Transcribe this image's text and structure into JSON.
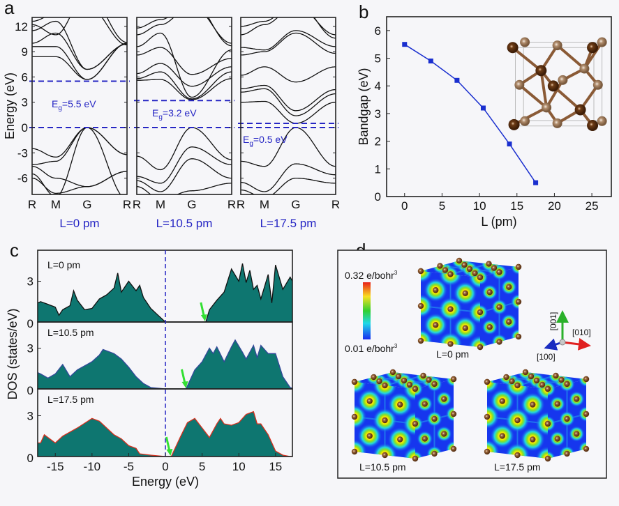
{
  "panel_labels": {
    "a": "a",
    "b": "b",
    "c": "c",
    "d": "d"
  },
  "colors": {
    "band_line": "#111111",
    "dashed_line": "#2626c4",
    "label_blue": "#2626c4",
    "bandgap_line": "#1a2fcf",
    "dos_fill": "#0e7670",
    "dos_line_0": "#111111",
    "dos_line_10_5": "#34489a",
    "dos_line_17_5": "#d8301e",
    "arrow_green": "#33e033"
  },
  "chart_data": [
    {
      "type": "line",
      "label": "a",
      "ylabel": "Energy (eV)",
      "ylim": [
        -7.9,
        13
      ],
      "yticks": [
        "12",
        "9",
        "6",
        "3",
        "0",
        "-3",
        "-6"
      ],
      "ytick_values": [
        12,
        9,
        6,
        3,
        0,
        -3,
        -6
      ],
      "k_labels": [
        "R",
        "M",
        "G",
        "R"
      ],
      "subplots": [
        {
          "title": "L=0 pm",
          "gap": {
            "main": "E",
            "sub": "g",
            "rest": "=5.5 eV"
          },
          "vbm": 0,
          "cbm": 5.5,
          "bands": [
            [
              -2.5,
              -3.5,
              0,
              -3.2
            ],
            [
              -4.4,
              -4.0,
              0,
              -3.2
            ],
            [
              -5.5,
              -8.2,
              0,
              -8.5
            ],
            [
              -6.0,
              -7.8,
              -7.0,
              -5.2
            ],
            [
              -4.6,
              -6.0,
              -7.0,
              -5.2
            ],
            [
              8.4,
              8.4,
              5.7,
              10.0
            ],
            [
              9.6,
              9.6,
              5.7,
              10.0
            ],
            [
              10.0,
              11.2,
              6.9,
              9.9
            ],
            [
              11.5,
              12.6,
              6.9,
              9.9
            ],
            [
              12.6,
              13.5,
              14.5,
              9.8
            ],
            [
              12.2,
              11.0,
              16.0,
              10.1
            ]
          ]
        },
        {
          "title": "L=10.5 pm",
          "gap": {
            "main": "E",
            "sub": "g",
            "rest": "=3.2 eV"
          },
          "vbm": 0,
          "cbm": 3.2,
          "bands": [
            [
              -3.4,
              -5.0,
              0,
              -3.8
            ],
            [
              -5.8,
              -6.6,
              -2.3,
              -4.4
            ],
            [
              -6.3,
              -7.6,
              -3.7,
              -6.0
            ],
            [
              -7.0,
              -8.5,
              -7.5,
              -6.6
            ],
            [
              5.6,
              5.7,
              3.3,
              5.8
            ],
            [
              5.8,
              6.6,
              3.4,
              6.6
            ],
            [
              6.4,
              7.6,
              4.9,
              7.2
            ],
            [
              8.6,
              9.5,
              6.3,
              8.2
            ],
            [
              9.6,
              11.2,
              3.6,
              9.2
            ],
            [
              11.0,
              12.2,
              14.5,
              10.0
            ],
            [
              11.8,
              12.8,
              15.0,
              9.7
            ]
          ]
        },
        {
          "title": "L=17.5 pm",
          "gap": {
            "main": "E",
            "sub": "g",
            "rest": "=0.5 eV"
          },
          "vbm": 0,
          "cbm": 0.5,
          "bands": [
            [
              -4.0,
              -4.6,
              0,
              -4.6
            ],
            [
              -6.5,
              -7.6,
              -4.3,
              -5.6
            ],
            [
              -7.4,
              -8.3,
              -6.0,
              -6.6
            ],
            [
              3.0,
              3.1,
              0.5,
              3.0
            ],
            [
              4.2,
              4.6,
              1.4,
              4.0
            ],
            [
              4.6,
              5.0,
              2.0,
              4.5
            ],
            [
              6.2,
              7.2,
              5.4,
              7.2
            ],
            [
              8.6,
              9.0,
              11.2,
              8.8
            ],
            [
              9.5,
              9.2,
              11.5,
              9.6
            ],
            [
              11.0,
              12.2,
              14.5,
              11.0
            ],
            [
              12.0,
              12.6,
              15.0,
              10.6
            ]
          ]
        }
      ]
    },
    {
      "type": "line",
      "label": "b",
      "xlabel": "L (pm)",
      "ylabel": "Bandgap (eV)",
      "xlim": [
        -2.4,
        27.6
      ],
      "ylim": [
        0,
        6.5
      ],
      "xticks": [
        "0",
        "5",
        "10",
        "15",
        "20",
        "25"
      ],
      "xtick_values": [
        0,
        5,
        10,
        15,
        20,
        25
      ],
      "yticks": [
        "0",
        "1",
        "2",
        "3",
        "4",
        "5",
        "6"
      ],
      "ytick_values": [
        0,
        1,
        2,
        3,
        4,
        5,
        6
      ],
      "x": [
        0,
        3.5,
        7,
        10.5,
        14,
        17.5
      ],
      "y": [
        5.5,
        4.9,
        4.2,
        3.2,
        1.9,
        0.5
      ],
      "marker": "square",
      "inset": "crystal-structure"
    },
    {
      "type": "area",
      "label": "c",
      "xlabel": "Energy (eV)",
      "ylabel": "DOS (states/eV)",
      "xlim": [
        -17.4,
        17.3
      ],
      "xticks": [
        "-15",
        "-10",
        "-5",
        "0",
        "5",
        "10",
        "15"
      ],
      "xtick_values": [
        -15,
        -10,
        -5,
        0,
        5,
        10,
        15
      ],
      "yticks": [
        "0",
        "3"
      ],
      "ytick_values": [
        0,
        3
      ],
      "fermi_level": 0,
      "series": [
        {
          "name": "L=0 pm",
          "cbm_arrow": 5.4,
          "x": [
            -17.4,
            -17,
            -16,
            -15,
            -14.5,
            -14,
            -13,
            -12.5,
            -12,
            -11,
            -10,
            -9,
            -8,
            -7,
            -6.5,
            -6,
            -5.5,
            -5,
            -4,
            -3.5,
            -3,
            -2,
            -1,
            0,
            5.5,
            6,
            7,
            8,
            9,
            10,
            10.5,
            11,
            11.5,
            12,
            12.5,
            13,
            14,
            14.5,
            15,
            16,
            17,
            17.3
          ],
          "y": [
            1.4,
            1.5,
            1.3,
            1.1,
            0.5,
            0.9,
            1.2,
            2.3,
            1.6,
            0.9,
            1.0,
            1.7,
            2.0,
            2.5,
            3.6,
            2.2,
            2.6,
            3.0,
            2.3,
            2.7,
            1.8,
            1.0,
            0.5,
            0,
            0,
            0.9,
            1.6,
            2.2,
            3.9,
            3.0,
            4.3,
            2.9,
            3.8,
            2.4,
            2.7,
            1.7,
            3.5,
            1.4,
            4.2,
            2.4,
            3.3,
            3.0
          ]
        },
        {
          "name": "L=10.5 pm",
          "cbm_arrow": 2.8,
          "x": [
            -17.4,
            -17,
            -16,
            -15,
            -14,
            -13,
            -12,
            -10,
            -9,
            -8.5,
            -7,
            -6,
            -5,
            -4,
            -3,
            -2,
            0,
            2.8,
            4,
            5,
            6,
            6.5,
            7,
            8,
            9,
            9.5,
            10.5,
            11,
            12,
            12.5,
            13,
            14,
            15,
            16,
            17,
            17.3
          ],
          "y": [
            1.2,
            1.1,
            0.8,
            1.1,
            1.8,
            0.9,
            1.4,
            2.0,
            2.5,
            2.9,
            2.6,
            2.2,
            1.6,
            0.9,
            0.4,
            0.1,
            0,
            0,
            1.4,
            2.0,
            3.0,
            2.6,
            3.1,
            2.0,
            3.1,
            3.6,
            2.7,
            2.2,
            3.2,
            2.3,
            3.2,
            2.6,
            2.6,
            0.9,
            0.1,
            0.05
          ]
        },
        {
          "name": "L=17.5 pm",
          "cbm_arrow": 0.7,
          "x": [
            -17.4,
            -17,
            -16.5,
            -15,
            -14,
            -12,
            -10,
            -9,
            -7,
            -6,
            -5,
            -4,
            -3.5,
            -2,
            0,
            0.8,
            2,
            3,
            4,
            5,
            6,
            7,
            7.5,
            8,
            9,
            10,
            11,
            12,
            12.5,
            13,
            14,
            15,
            16,
            17,
            17.3
          ],
          "y": [
            1.0,
            1.0,
            1.6,
            1.0,
            1.5,
            2.1,
            2.8,
            2.6,
            1.6,
            1.3,
            0.8,
            0.6,
            0.2,
            0.1,
            0,
            0,
            1.4,
            2.5,
            2.8,
            2.1,
            1.4,
            2.4,
            2.8,
            2.4,
            2.3,
            2.5,
            3.1,
            3.3,
            2.4,
            2.4,
            1.6,
            0.4,
            0.1,
            0,
            0
          ]
        }
      ]
    }
  ],
  "panel_d": {
    "colorbar_max": {
      "text": "0.32 e/bohr",
      "sup": "3"
    },
    "colorbar_min": {
      "text": "0.01 e/bohr",
      "sup": "3"
    },
    "cube_labels": [
      "L=0 pm",
      "L=10.5 pm",
      "L=17.5 pm"
    ],
    "axes": {
      "z": "[001]",
      "y": "[010]",
      "x": "[100]"
    }
  }
}
